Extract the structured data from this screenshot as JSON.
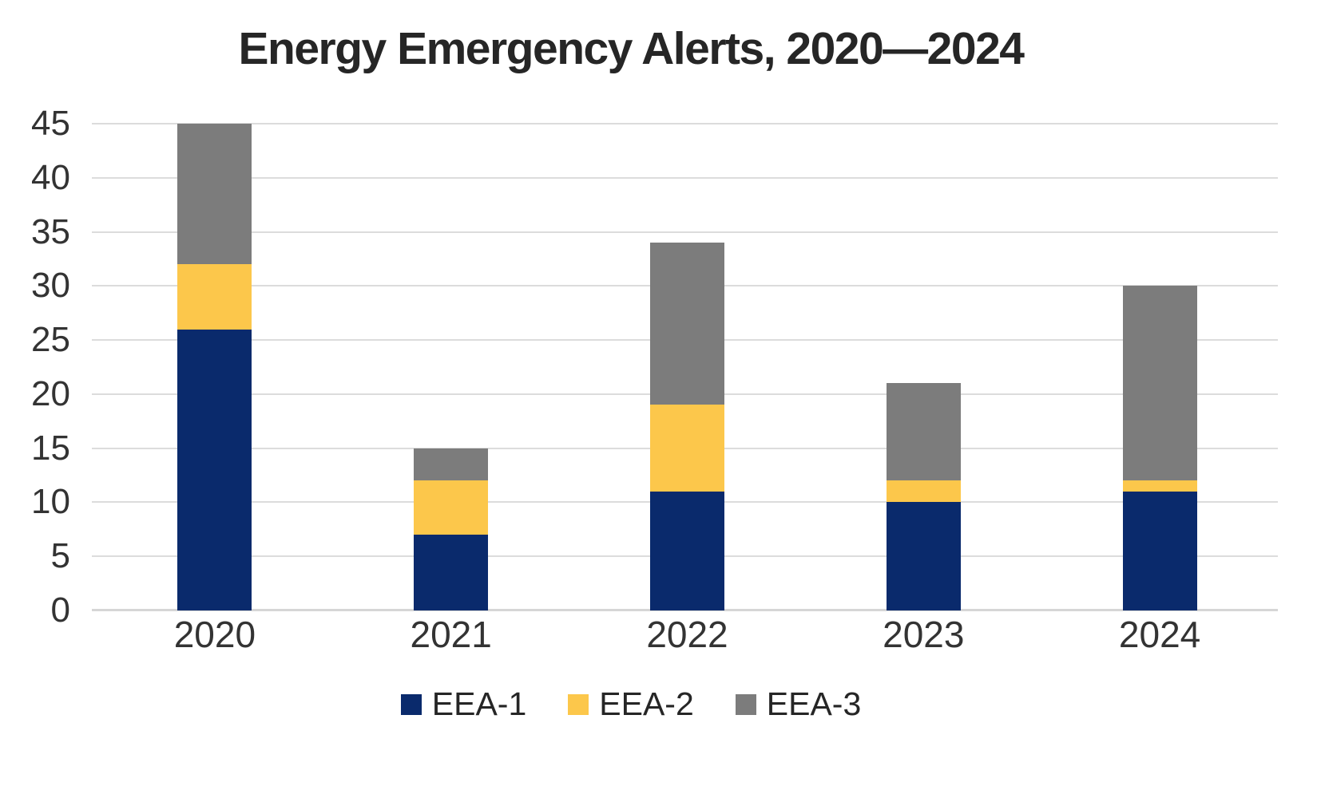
{
  "chart_data": {
    "type": "bar",
    "stacked": true,
    "title": "Energy Emergency Alerts, 2020—2024",
    "categories": [
      "2020",
      "2021",
      "2022",
      "2023",
      "2024"
    ],
    "series": [
      {
        "name": "EEA-1",
        "color": "#0a2a6c",
        "values": [
          26,
          7,
          11,
          10,
          11
        ]
      },
      {
        "name": "EEA-2",
        "color": "#fcc74b",
        "values": [
          6,
          5,
          8,
          2,
          1
        ]
      },
      {
        "name": "EEA-3",
        "color": "#7c7c7c",
        "values": [
          13,
          3,
          15,
          9,
          18
        ]
      }
    ],
    "totals": [
      45,
      15,
      34,
      21,
      30
    ],
    "xlabel": "",
    "ylabel": "",
    "ylim": [
      0,
      45
    ],
    "y_ticks": [
      0,
      5,
      10,
      15,
      20,
      25,
      30,
      35,
      40,
      45
    ],
    "grid": "horizontal",
    "legend_position": "bottom",
    "colors": {
      "gridline": "#dcdcdc",
      "title_text": "#262626",
      "axis_text": "#333333"
    }
  }
}
